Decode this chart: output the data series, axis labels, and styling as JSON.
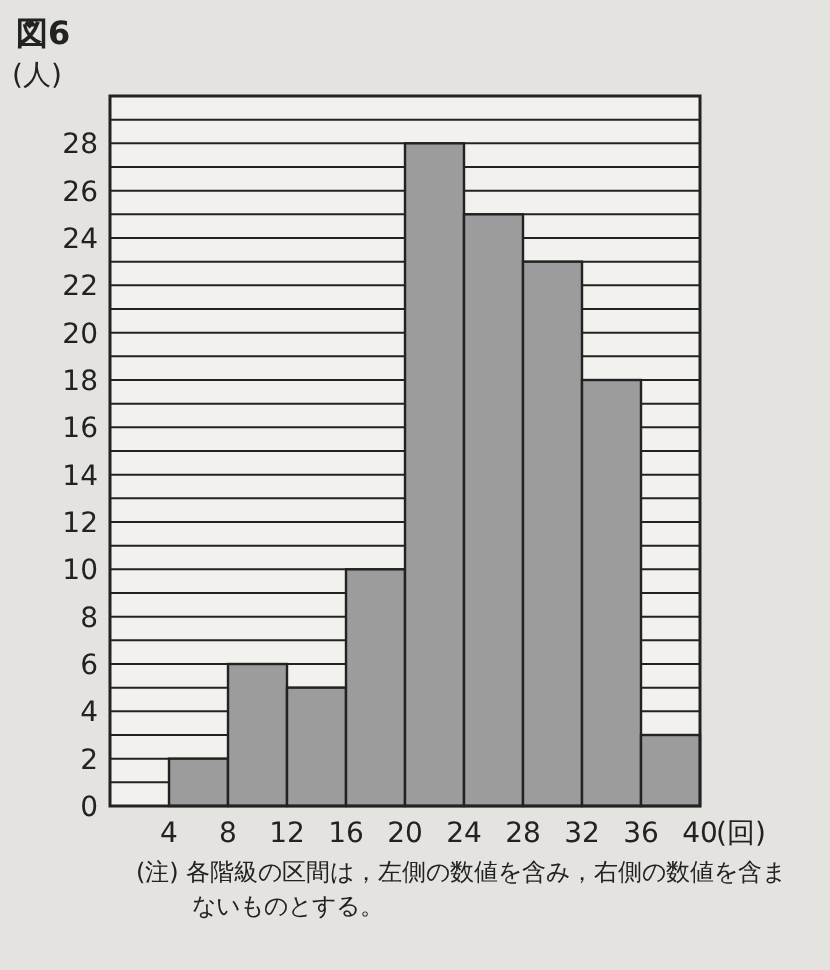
{
  "chart_data": {
    "type": "histogram",
    "title": "図6",
    "ylabel": "(人)",
    "xlabel": "(回)",
    "bins": [
      4,
      8,
      12,
      16,
      20,
      24,
      28,
      32,
      36,
      40
    ],
    "values": [
      2,
      6,
      5,
      10,
      28,
      25,
      23,
      18,
      3
    ],
    "color": "#9c9c9c",
    "xlim": [
      0,
      40
    ],
    "xticks": [
      4,
      8,
      12,
      16,
      20,
      24,
      28,
      32,
      36,
      40
    ],
    "ylim": [
      0,
      30
    ],
    "yticks": [
      0,
      {
        "value": 1,
        "label": null
      },
      2,
      {
        "value": 3,
        "label": null
      },
      4,
      {
        "value": 5,
        "label": null
      },
      6,
      {
        "value": 7,
        "label": null
      },
      8,
      {
        "value": 9,
        "label": null
      },
      10,
      {
        "value": 11,
        "label": null
      },
      12,
      {
        "value": 13,
        "label": null
      },
      14,
      {
        "value": 15,
        "label": null
      },
      16,
      {
        "value": 17,
        "label": null
      },
      18,
      {
        "value": 19,
        "label": null
      },
      20,
      {
        "value": 21,
        "label": null
      },
      22,
      {
        "value": 23,
        "label": null
      },
      24,
      {
        "value": 25,
        "label": null
      },
      26,
      {
        "value": 27,
        "label": null
      },
      28,
      {
        "value": 29,
        "label": null
      },
      {
        "value": 30,
        "label": null
      }
    ],
    "grid": "y",
    "annotations": [
      "(注)  各階級の区間は，左側の数値を含み，右側の数値を含まないものとする。"
    ]
  }
}
